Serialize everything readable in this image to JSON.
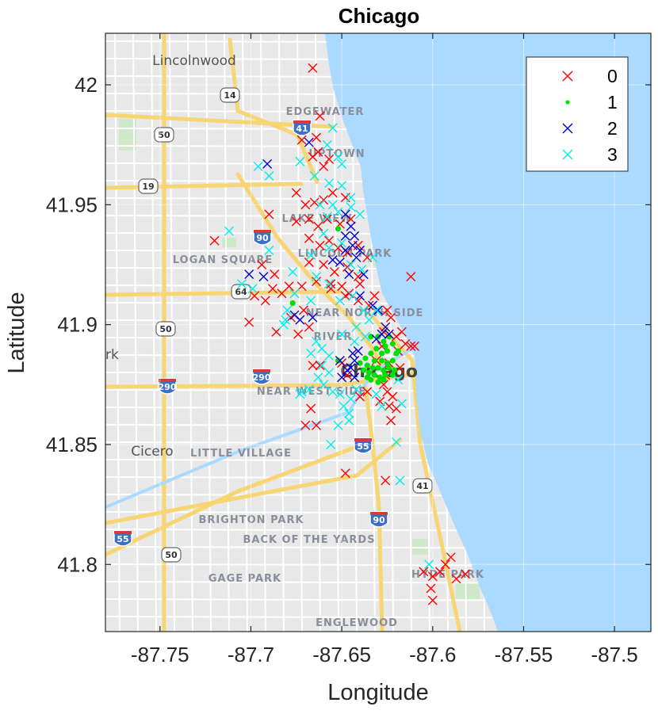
{
  "chart_data": {
    "type": "scatter",
    "title": "Chicago",
    "xlabel": "Longitude",
    "ylabel": "Latitude",
    "xlim": [
      -87.78,
      -87.48
    ],
    "ylim": [
      41.772,
      42.0215
    ],
    "xticks": [
      -87.75,
      -87.7,
      -87.65,
      -87.6,
      -87.55,
      -87.5
    ],
    "xtick_labels": [
      "-87.75",
      "-87.7",
      "-87.65",
      "-87.6",
      "-87.55",
      "-87.5"
    ],
    "yticks": [
      41.8,
      41.85,
      41.9,
      41.95,
      42.0
    ],
    "ytick_labels": [
      "41.8",
      "41.85",
      "41.9",
      "41.95",
      "42"
    ],
    "grid": true,
    "legend_position": "top-right",
    "basemap": {
      "place_labels": [
        "Lincolnwood",
        "EDGEWATER",
        "UPTOWN",
        "LAKE VIEW",
        "LINCOLN PARK",
        "LOGAN SQUARE",
        "NEAR NORTH SIDE",
        "RIVER",
        "Chicago",
        "NEAR WEST SIDE",
        "Cicero",
        "LITTLE VILLAGE",
        "BRIGHTON PARK",
        "BACK OF THE YARDS",
        "GAGE PARK",
        "HYDE PARK",
        "ENGLEWOOD",
        "rk"
      ],
      "road_shields": [
        "14",
        "41",
        "50",
        "19",
        "90",
        "64",
        "50",
        "290",
        "290",
        "55",
        "41",
        "90",
        "55",
        "50"
      ],
      "water_color": "#aadaff",
      "land_color": "#e8e8e8"
    },
    "series": [
      {
        "name": "0",
        "marker": "x",
        "color": "#ff0000",
        "points": [
          [
            -87.666,
            42.007
          ],
          [
            -87.662,
            41.987
          ],
          [
            -87.664,
            41.978
          ],
          [
            -87.663,
            41.972
          ],
          [
            -87.666,
            41.97
          ],
          [
            -87.672,
            41.977
          ],
          [
            -87.657,
            41.969
          ],
          [
            -87.66,
            41.966
          ],
          [
            -87.675,
            41.955
          ],
          [
            -87.67,
            41.95
          ],
          [
            -87.665,
            41.951
          ],
          [
            -87.66,
            41.952
          ],
          [
            -87.655,
            41.955
          ],
          [
            -87.648,
            41.953
          ],
          [
            -87.675,
            41.943
          ],
          [
            -87.668,
            41.944
          ],
          [
            -87.663,
            41.941
          ],
          [
            -87.658,
            41.944
          ],
          [
            -87.651,
            41.942
          ],
          [
            -87.645,
            41.944
          ],
          [
            -87.69,
            41.946
          ],
          [
            -87.72,
            41.935
          ],
          [
            -87.668,
            41.936
          ],
          [
            -87.662,
            41.933
          ],
          [
            -87.657,
            41.935
          ],
          [
            -87.652,
            41.932
          ],
          [
            -87.647,
            41.93
          ],
          [
            -87.641,
            41.933
          ],
          [
            -87.636,
            41.928
          ],
          [
            -87.668,
            41.926
          ],
          [
            -87.66,
            41.925
          ],
          [
            -87.654,
            41.922
          ],
          [
            -87.647,
            41.924
          ],
          [
            -87.641,
            41.92
          ],
          [
            -87.694,
            41.925
          ],
          [
            -87.687,
            41.921
          ],
          [
            -87.664,
            41.918
          ],
          [
            -87.656,
            41.915
          ],
          [
            -87.648,
            41.912
          ],
          [
            -87.641,
            41.91
          ],
          [
            -87.635,
            41.908
          ],
          [
            -87.698,
            41.912
          ],
          [
            -87.692,
            41.91
          ],
          [
            -87.688,
            41.915
          ],
          [
            -87.683,
            41.913
          ],
          [
            -87.679,
            41.916
          ],
          [
            -87.672,
            41.916
          ],
          [
            -87.656,
            41.917
          ],
          [
            -87.65,
            41.916
          ],
          [
            -87.646,
            41.913
          ],
          [
            -87.64,
            41.917
          ],
          [
            -87.632,
            41.912
          ],
          [
            -87.625,
            41.906
          ],
          [
            -87.623,
            41.903
          ],
          [
            -87.627,
            41.897
          ],
          [
            -87.62,
            41.895
          ],
          [
            -87.617,
            41.897
          ],
          [
            -87.615,
            41.892
          ],
          [
            -87.612,
            41.891
          ],
          [
            -87.619,
            41.889
          ],
          [
            -87.624,
            41.884
          ],
          [
            -87.618,
            41.882
          ],
          [
            -87.631,
            41.885
          ],
          [
            -87.626,
            41.879
          ],
          [
            -87.671,
            41.906
          ],
          [
            -87.678,
            41.903
          ],
          [
            -87.686,
            41.897
          ],
          [
            -87.701,
            41.901
          ],
          [
            -87.674,
            41.896
          ],
          [
            -87.668,
            41.899
          ],
          [
            -87.627,
            41.875
          ],
          [
            -87.625,
            41.872
          ],
          [
            -87.622,
            41.87
          ],
          [
            -87.629,
            41.868
          ],
          [
            -87.624,
            41.866
          ],
          [
            -87.62,
            41.865
          ],
          [
            -87.623,
            41.86
          ],
          [
            -87.64,
            41.87
          ],
          [
            -87.647,
            41.879
          ],
          [
            -87.664,
            41.858
          ],
          [
            -87.667,
            41.865
          ],
          [
            -87.67,
            41.858
          ],
          [
            -87.666,
            41.883
          ],
          [
            -87.662,
            41.883
          ],
          [
            -87.65,
            41.884
          ],
          [
            -87.648,
            41.838
          ],
          [
            -87.626,
            41.835
          ],
          [
            -87.612,
            41.92
          ],
          [
            -87.605,
            41.797
          ],
          [
            -87.6,
            41.795
          ],
          [
            -87.596,
            41.797
          ],
          [
            -87.593,
            41.8
          ],
          [
            -87.59,
            41.803
          ],
          [
            -87.601,
            41.79
          ],
          [
            -87.6,
            41.785
          ],
          [
            -87.582,
            41.796
          ],
          [
            -87.587,
            41.794
          ],
          [
            -87.61,
            41.891
          ],
          [
            -87.628,
            41.891
          ],
          [
            -87.636,
            41.872
          ]
        ]
      },
      {
        "name": "1",
        "marker": "dot",
        "color": "#00e000",
        "points": [
          [
            -87.652,
            41.94
          ],
          [
            -87.677,
            41.909
          ],
          [
            -87.634,
            41.895
          ],
          [
            -87.63,
            41.895
          ],
          [
            -87.627,
            41.893
          ],
          [
            -87.624,
            41.895
          ],
          [
            -87.622,
            41.892
          ],
          [
            -87.625,
            41.889
          ],
          [
            -87.628,
            41.888
          ],
          [
            -87.631,
            41.89
          ],
          [
            -87.634,
            41.888
          ],
          [
            -87.637,
            41.886
          ],
          [
            -87.632,
            41.885
          ],
          [
            -87.628,
            41.885
          ],
          [
            -87.625,
            41.884
          ],
          [
            -87.622,
            41.885
          ],
          [
            -87.62,
            41.888
          ],
          [
            -87.636,
            41.883
          ],
          [
            -87.633,
            41.882
          ],
          [
            -87.63,
            41.882
          ],
          [
            -87.627,
            41.881
          ],
          [
            -87.624,
            41.882
          ],
          [
            -87.621,
            41.881
          ],
          [
            -87.638,
            41.881
          ],
          [
            -87.635,
            41.88
          ],
          [
            -87.632,
            41.879
          ],
          [
            -87.629,
            41.878
          ],
          [
            -87.626,
            41.879
          ],
          [
            -87.634,
            41.877
          ],
          [
            -87.63,
            41.876
          ],
          [
            -87.627,
            41.877
          ],
          [
            -87.64,
            41.884
          ],
          [
            -87.652,
            41.885
          ],
          [
            -87.636,
            41.878
          ],
          [
            -87.622,
            41.879
          ],
          [
            -87.619,
            41.889
          ],
          [
            -87.626,
            41.891
          ]
        ]
      },
      {
        "name": "2",
        "marker": "x",
        "color": "#0000cc",
        "points": [
          [
            -87.668,
            41.976
          ],
          [
            -87.691,
            41.967
          ],
          [
            -87.648,
            41.946
          ],
          [
            -87.645,
            41.941
          ],
          [
            -87.648,
            41.937
          ],
          [
            -87.643,
            41.937
          ],
          [
            -87.644,
            41.933
          ],
          [
            -87.648,
            41.931
          ],
          [
            -87.642,
            41.928
          ],
          [
            -87.64,
            41.931
          ],
          [
            -87.651,
            41.926
          ],
          [
            -87.646,
            41.921
          ],
          [
            -87.638,
            41.921
          ],
          [
            -87.701,
            41.921
          ],
          [
            -87.693,
            41.92
          ],
          [
            -87.676,
            41.904
          ],
          [
            -87.673,
            41.902
          ],
          [
            -87.666,
            41.903
          ],
          [
            -87.655,
            41.927
          ],
          [
            -87.64,
            41.912
          ],
          [
            -87.633,
            41.908
          ],
          [
            -87.63,
            41.906
          ],
          [
            -87.626,
            41.899
          ],
          [
            -87.628,
            41.896
          ],
          [
            -87.631,
            41.894
          ],
          [
            -87.641,
            41.889
          ],
          [
            -87.644,
            41.888
          ],
          [
            -87.643,
            41.885
          ],
          [
            -87.645,
            41.882
          ],
          [
            -87.65,
            41.878
          ],
          [
            -87.651,
            41.885
          ],
          [
            -87.647,
            41.881
          ],
          [
            -87.643,
            41.878
          ],
          [
            -87.624,
            41.896
          ]
        ]
      },
      {
        "name": "3",
        "marker": "x",
        "color": "#00eeee",
        "points": [
          [
            -87.655,
            41.982
          ],
          [
            -87.658,
            41.975
          ],
          [
            -87.673,
            41.968
          ],
          [
            -87.652,
            41.97
          ],
          [
            -87.65,
            41.967
          ],
          [
            -87.696,
            41.966
          ],
          [
            -87.69,
            41.962
          ],
          [
            -87.665,
            41.962
          ],
          [
            -87.657,
            41.959
          ],
          [
            -87.65,
            41.958
          ],
          [
            -87.645,
            41.953
          ],
          [
            -87.645,
            41.949
          ],
          [
            -87.64,
            41.946
          ],
          [
            -87.662,
            41.95
          ],
          [
            -87.655,
            41.95
          ],
          [
            -87.658,
            41.945
          ],
          [
            -87.652,
            41.947
          ],
          [
            -87.66,
            41.938
          ],
          [
            -87.657,
            41.932
          ],
          [
            -87.65,
            41.934
          ],
          [
            -87.645,
            41.925
          ],
          [
            -87.639,
            41.923
          ],
          [
            -87.633,
            41.928
          ],
          [
            -87.712,
            41.939
          ],
          [
            -87.667,
            41.929
          ],
          [
            -87.705,
            41.917
          ],
          [
            -87.699,
            41.915
          ],
          [
            -87.677,
            41.922
          ],
          [
            -87.664,
            41.92
          ],
          [
            -87.657,
            41.917
          ],
          [
            -87.651,
            41.91
          ],
          [
            -87.644,
            41.912
          ],
          [
            -87.638,
            41.906
          ],
          [
            -87.635,
            41.902
          ],
          [
            -87.631,
            41.906
          ],
          [
            -87.642,
            41.899
          ],
          [
            -87.637,
            41.895
          ],
          [
            -87.65,
            41.896
          ],
          [
            -87.643,
            41.893
          ],
          [
            -87.676,
            41.913
          ],
          [
            -87.68,
            41.906
          ],
          [
            -87.681,
            41.902
          ],
          [
            -87.667,
            41.91
          ],
          [
            -87.664,
            41.893
          ],
          [
            -87.661,
            41.89
          ],
          [
            -87.657,
            41.887
          ],
          [
            -87.667,
            41.888
          ],
          [
            -87.661,
            41.883
          ],
          [
            -87.663,
            41.878
          ],
          [
            -87.657,
            41.88
          ],
          [
            -87.66,
            41.875
          ],
          [
            -87.668,
            41.873
          ],
          [
            -87.672,
            41.872
          ],
          [
            -87.673,
            41.871
          ],
          [
            -87.655,
            41.872
          ],
          [
            -87.651,
            41.871
          ],
          [
            -87.645,
            41.869
          ],
          [
            -87.642,
            41.873
          ],
          [
            -87.649,
            41.866
          ],
          [
            -87.646,
            41.863
          ],
          [
            -87.631,
            41.871
          ],
          [
            -87.628,
            41.866
          ],
          [
            -87.617,
            41.867
          ],
          [
            -87.619,
            41.877
          ],
          [
            -87.652,
            41.858
          ],
          [
            -87.646,
            41.86
          ],
          [
            -87.656,
            41.85
          ],
          [
            -87.62,
            41.851
          ],
          [
            -87.618,
            41.835
          ],
          [
            -87.602,
            41.8
          ],
          [
            -87.682,
            41.9
          ],
          [
            -87.69,
            41.931
          ]
        ]
      }
    ]
  }
}
